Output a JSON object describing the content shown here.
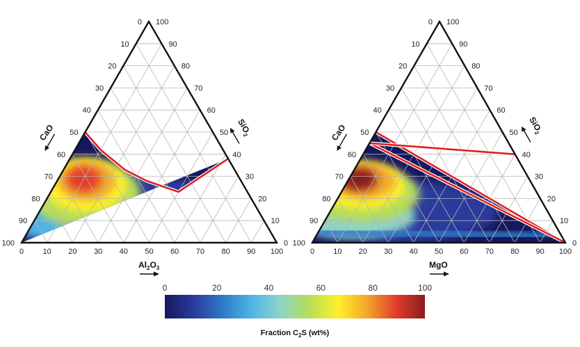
{
  "chart_data": [
    {
      "type": "heatmap",
      "subtype": "ternary",
      "vertices": {
        "bottom_left": "CaO",
        "bottom_right": "Al2O3",
        "top": "SiO2"
      },
      "axes": {
        "left": {
          "label": "CaO",
          "ticks": [
            "0",
            "10",
            "20",
            "30",
            "40",
            "50",
            "60",
            "70",
            "80",
            "90",
            "100"
          ]
        },
        "right": {
          "label": "SiO2",
          "ticks": [
            "0",
            "10",
            "20",
            "30",
            "40",
            "50",
            "60",
            "70",
            "80",
            "90",
            "100"
          ]
        },
        "bottom": {
          "label": "Al2O3",
          "ticks": [
            "0",
            "10",
            "20",
            "30",
            "40",
            "50",
            "60",
            "70",
            "80",
            "90",
            "100"
          ]
        }
      },
      "axis_labels": {
        "left": {
          "main": "CaO",
          "sub": ""
        },
        "right": {
          "main": "SiO",
          "sub": "2"
        },
        "bottom": {
          "main": "Al",
          "sub1": "2",
          "main2": "O",
          "sub2": "3"
        }
      },
      "grid": true,
      "boundary_line": {
        "color": "#e02020",
        "points_wt": [
          [
            0,
            50,
            50
          ],
          [
            10,
            48,
            42
          ],
          [
            24,
            43,
            33
          ],
          [
            35,
            37,
            28
          ],
          [
            50,
            27,
            23
          ],
          [
            62,
            0,
            38
          ]
        ]
      },
      "region_peak": {
        "location_wt": {
          "Al2O3": 12,
          "SiO2": 28,
          "CaO": 60
        },
        "fraction_c2s_wt_pct": 90
      }
    },
    {
      "type": "heatmap",
      "subtype": "ternary",
      "vertices": {
        "bottom_left": "CaO",
        "bottom_right": "MgO",
        "top": "SiO2"
      },
      "axes": {
        "left": {
          "label": "CaO",
          "ticks": [
            "0",
            "10",
            "20",
            "30",
            "40",
            "50",
            "60",
            "70",
            "80",
            "90",
            "100"
          ]
        },
        "right": {
          "label": "SiO2",
          "ticks": [
            "0",
            "10",
            "20",
            "30",
            "40",
            "50",
            "60",
            "70",
            "80",
            "90",
            "100"
          ]
        },
        "bottom": {
          "label": "MgO",
          "ticks": [
            "0",
            "10",
            "20",
            "30",
            "40",
            "50",
            "60",
            "70",
            "80",
            "90",
            "100"
          ]
        }
      },
      "axis_labels": {
        "left": {
          "main": "CaO",
          "sub": ""
        },
        "right": {
          "main": "SiO",
          "sub": "2"
        },
        "bottom": {
          "main": "MgO"
        }
      },
      "grid": true,
      "boundary_lines": [
        {
          "color": "#e02020",
          "from_wt": {
            "CaO": 50,
            "SiO2": 50,
            "MgO": 0
          },
          "to_wt": {
            "CaO": 0,
            "SiO2": 0,
            "MgO": 100
          }
        },
        {
          "color": "#e02020",
          "from_wt": {
            "CaO": 55,
            "SiO2": 45,
            "MgO": 0
          },
          "to_wt": {
            "CaO": 0,
            "SiO2": 0,
            "MgO": 100
          }
        },
        {
          "color": "#e02020",
          "from_wt": {
            "CaO": 55,
            "SiO2": 45,
            "MgO": 0
          },
          "to_wt": {
            "CaO": 0,
            "SiO2": 40,
            "MgO": 60
          }
        }
      ],
      "region_peak": {
        "location_wt": {
          "MgO": 5,
          "SiO2": 28,
          "CaO": 67
        },
        "fraction_c2s_wt_pct": 95
      }
    }
  ],
  "colorbar": {
    "title_main": "Fraction C",
    "title_sub": "2",
    "title_end": "S (wt%)",
    "ticks": [
      "0",
      "20",
      "40",
      "60",
      "80",
      "100"
    ],
    "range": [
      0,
      100
    ],
    "colormap": [
      "#16185e",
      "#2a3a9c",
      "#2f79c8",
      "#4fb4e6",
      "#8dd3c8",
      "#b6de57",
      "#fff02a",
      "#f2a62b",
      "#e33d2c",
      "#8a1a1e"
    ]
  }
}
